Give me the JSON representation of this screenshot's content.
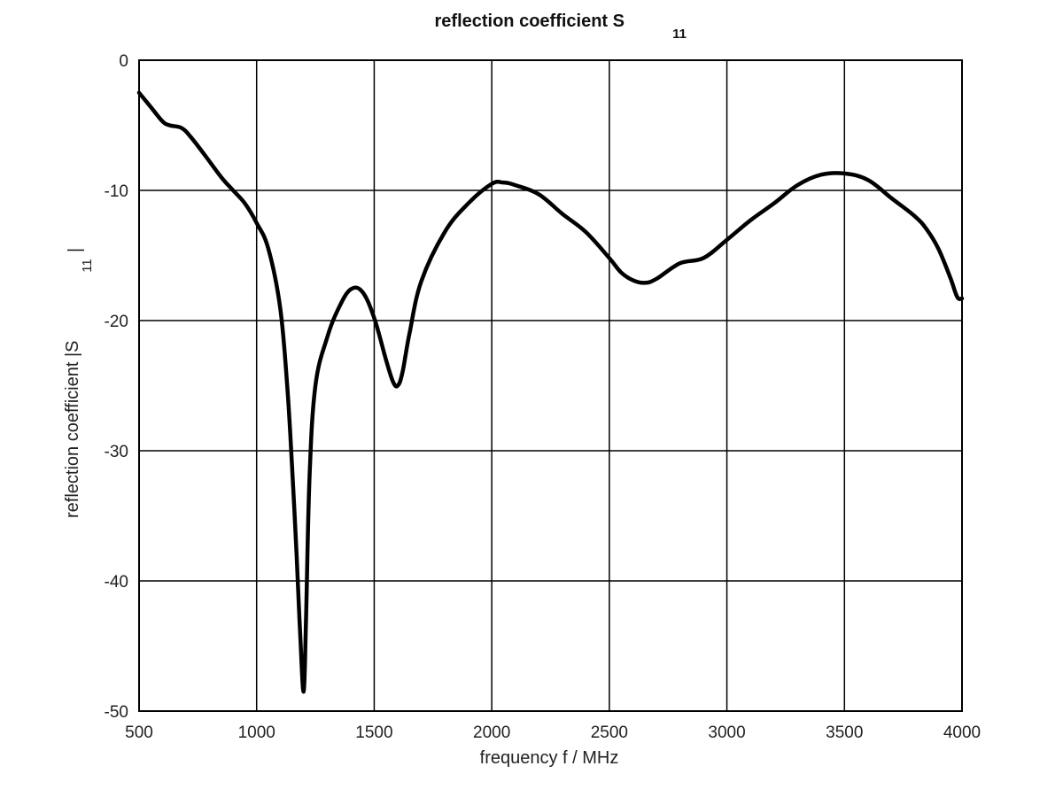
{
  "chart_data": {
    "type": "line",
    "title": {
      "main": "reflection coefficient S",
      "sub": "11"
    },
    "xlabel": "frequency f / MHz",
    "ylabel": {
      "main": "reflection coefficient |S",
      "sub": "11",
      "suffix": "|"
    },
    "xlim": [
      500,
      4000
    ],
    "ylim": [
      -50,
      0
    ],
    "xticks": [
      500,
      1000,
      1500,
      2000,
      2500,
      3000,
      3500,
      4000
    ],
    "yticks": [
      0,
      -10,
      -20,
      -30,
      -40,
      -50
    ],
    "grid": true,
    "line_color": "#000000",
    "series": [
      {
        "x": [
          500,
          550,
          600,
          630,
          680,
          720,
          780,
          850,
          900,
          950,
          1000,
          1050,
          1100,
          1130,
          1150,
          1170,
          1185,
          1200,
          1210,
          1225,
          1250,
          1300,
          1350,
          1400,
          1450,
          1500,
          1550,
          1580,
          1600,
          1620,
          1650,
          1700,
          1800,
          1900,
          2000,
          2050,
          2100,
          2200,
          2300,
          2400,
          2500,
          2550,
          2600,
          2650,
          2700,
          2800,
          2900,
          3000,
          3100,
          3200,
          3300,
          3400,
          3500,
          3600,
          3700,
          3800,
          3850,
          3900,
          3950,
          3980,
          4000
        ],
        "y": [
          -2.5,
          -3.6,
          -4.7,
          -5.0,
          -5.2,
          -5.9,
          -7.3,
          -9.0,
          -10.0,
          -11.0,
          -12.5,
          -14.5,
          -19.0,
          -25.0,
          -31.0,
          -38.0,
          -44.0,
          -48.5,
          -43.0,
          -32.0,
          -25.0,
          -21.3,
          -19.0,
          -17.6,
          -17.8,
          -19.8,
          -23.0,
          -24.7,
          -25.0,
          -24.0,
          -21.0,
          -17.0,
          -13.2,
          -11.0,
          -9.5,
          -9.4,
          -9.6,
          -10.3,
          -11.8,
          -13.2,
          -15.2,
          -16.3,
          -16.9,
          -17.1,
          -16.8,
          -15.6,
          -15.2,
          -13.8,
          -12.3,
          -11.0,
          -9.6,
          -8.8,
          -8.7,
          -9.2,
          -10.6,
          -12.0,
          -13.0,
          -14.5,
          -16.7,
          -18.2,
          -18.3
        ]
      }
    ]
  }
}
